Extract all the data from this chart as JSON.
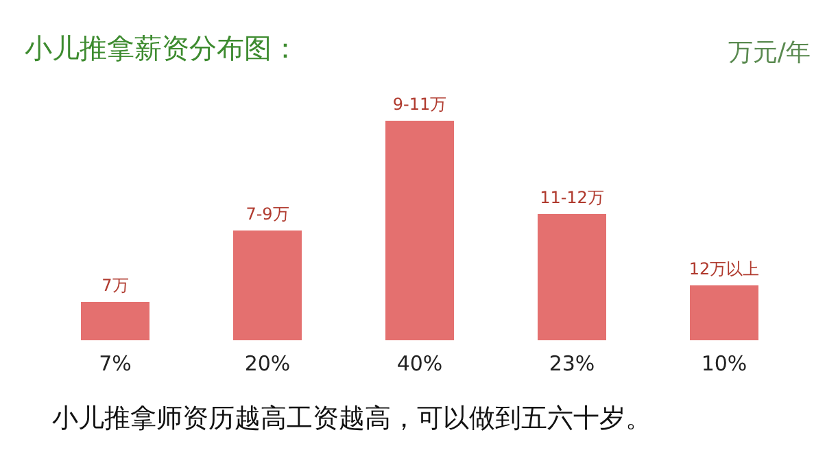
{
  "chart_data": {
    "type": "bar",
    "title": "小儿推拿薪资分布图：",
    "ylabel": "万元/年",
    "categories": [
      "7万",
      "7-9万",
      "9-11万",
      "11-12万",
      "12万以上"
    ],
    "values": [
      7,
      20,
      40,
      23,
      10
    ],
    "value_labels": [
      "7%",
      "20%",
      "40%",
      "23%",
      "10%"
    ],
    "color": "#e4706f",
    "annotations": [
      "小儿推拿师资历越高工资越高，可以做到五六十岁。"
    ]
  }
}
